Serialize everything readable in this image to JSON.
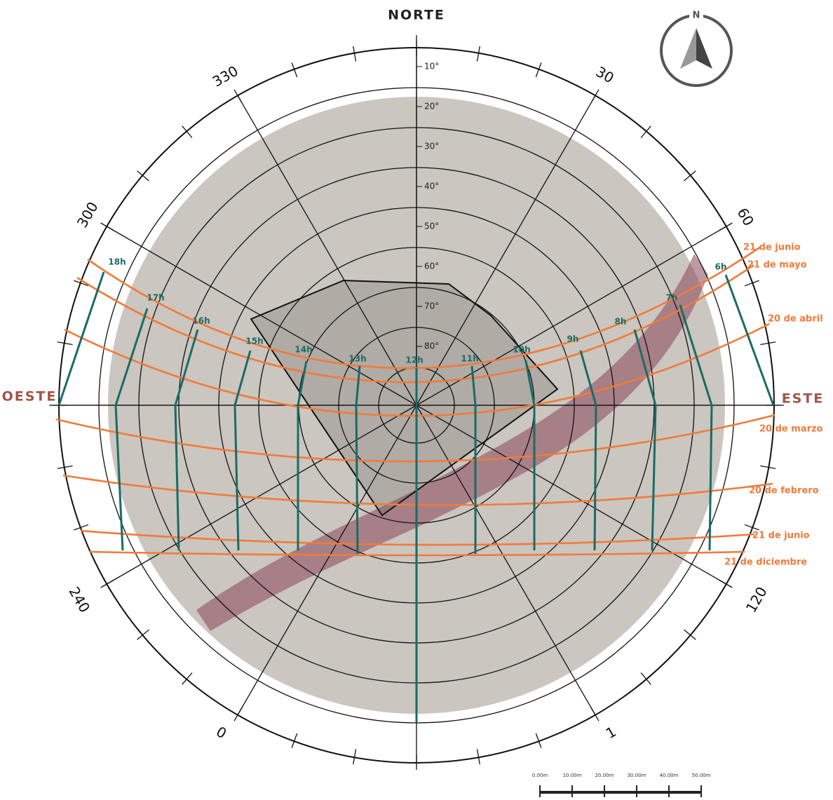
{
  "header": {
    "north": "NORTE",
    "west": "OESTE",
    "east": "ESTE"
  },
  "compass": "N",
  "azimuth_labels": [
    "330",
    "30",
    "300",
    "60",
    "240",
    "120",
    "0",
    "1"
  ],
  "altitude_labels": [
    "10°",
    "20°",
    "30°",
    "40°",
    "50°",
    "60°",
    "70°",
    "80°"
  ],
  "hour_labels": [
    "18h",
    "17h",
    "16h",
    "15h",
    "14h",
    "13h",
    "12h",
    "11h",
    "10h",
    "9h",
    "8h",
    "7h",
    "6h"
  ],
  "date_labels": [
    "21 de junio",
    "21 de mayo",
    "20 de abril",
    "20 de marzo",
    "20 de febrero",
    "21 de junio",
    "21 de diciembre"
  ],
  "scale_labels": [
    "0.00m",
    "10.00m",
    "20.00m",
    "30.00m",
    "40.00m",
    "50.00m"
  ]
}
